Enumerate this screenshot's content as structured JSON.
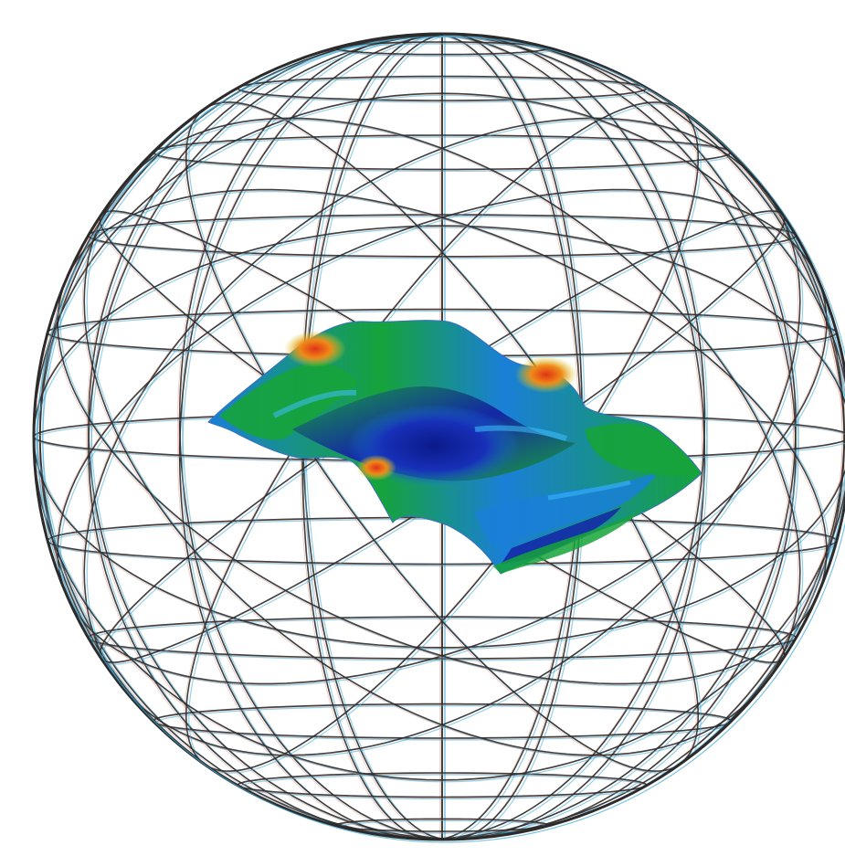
{
  "figure": {
    "subject": "geodesic-sphere-with-deformed-surface",
    "colors": {
      "background": "#ffffff",
      "wire_main": "#2b2b2b",
      "wire_shadow_cyan": "#3fa9d6",
      "wire_shadow_red": "#d06a50",
      "surface_low": "#1426a6",
      "surface_mid_low": "#1a7fd8",
      "surface_mid": "#16a33a",
      "surface_mid_high": "#d8d020",
      "surface_high": "#e03418"
    },
    "parts": [
      "wireframe-sphere",
      "colored-deformed-surface"
    ]
  }
}
